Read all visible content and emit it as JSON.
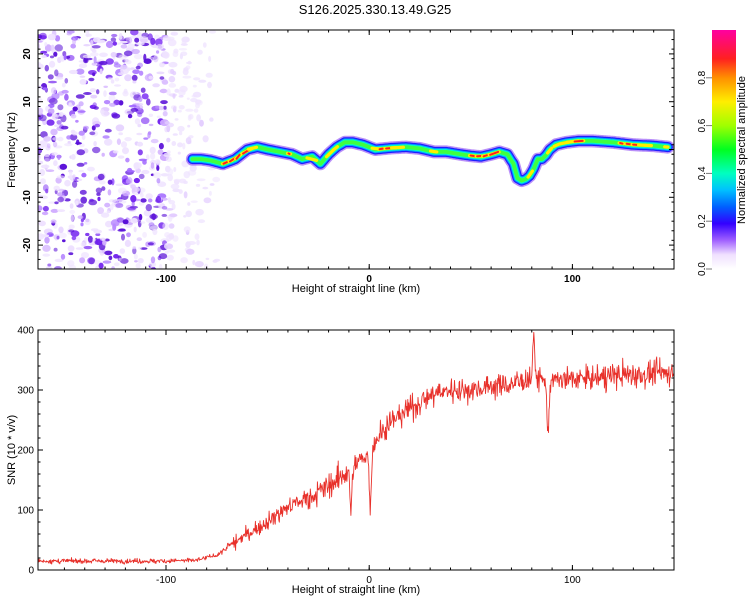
{
  "title": "S126.2025.330.13.49.G25",
  "chart_data": [
    {
      "type": "heatmap",
      "xlabel": "Height of straight line (km)",
      "ylabel": "Frequency (Hz)",
      "xlim": [
        -163,
        150
      ],
      "ylim": [
        -25,
        25
      ],
      "xticks": [
        -100,
        0,
        100
      ],
      "yticks": [
        -20,
        -10,
        0,
        10,
        20
      ],
      "noise_region_x": [
        -163,
        -70
      ],
      "ridge": {
        "x": [
          -87,
          -83,
          -78,
          -72,
          -66,
          -60,
          -55,
          -50,
          -44,
          -38,
          -33,
          -28,
          -24,
          -20,
          -16,
          -12,
          -8,
          -3,
          3,
          10,
          18,
          25,
          32,
          38,
          45,
          50,
          55,
          60,
          64,
          68,
          71,
          73,
          75,
          77,
          79,
          81,
          83,
          85,
          87,
          89,
          92,
          97,
          103,
          110,
          120,
          130,
          140,
          147
        ],
        "freq": [
          -2,
          -2,
          -2.3,
          -3,
          -2,
          0,
          0.5,
          0,
          -0.5,
          -1,
          -2,
          -1.5,
          -3,
          -1,
          0.5,
          1.5,
          1.5,
          1,
          0,
          0.3,
          0.5,
          0.2,
          -0.5,
          -0.5,
          -1,
          -1.3,
          -1.5,
          -1,
          -0.5,
          -1,
          -3,
          -6,
          -6.5,
          -6.2,
          -5.5,
          -4,
          -2,
          -2,
          -1.2,
          0,
          1,
          1.5,
          1.8,
          1.8,
          1.5,
          1.0,
          0.8,
          0.5
        ]
      },
      "colorbar": {
        "label": "Normalized spectral amplitude",
        "range": [
          0,
          1
        ],
        "ticks": [
          0.0,
          0.2,
          0.4,
          0.6,
          0.8
        ],
        "tick_labels": [
          "0.0",
          "0.2",
          "0.4",
          "0.6",
          "0.8"
        ],
        "colors": [
          "#ffffff",
          "#7b00ff",
          "#0000ff",
          "#00ffff",
          "#00ff00",
          "#ffff00",
          "#ff7f00",
          "#ff0000",
          "#ff00ff"
        ]
      }
    },
    {
      "type": "line",
      "xlabel": "Height of straight line (km)",
      "ylabel": "SNR (10 * v/v)",
      "xlim": [
        -163,
        150
      ],
      "ylim": [
        0,
        400
      ],
      "xticks": [
        -100,
        0,
        100
      ],
      "yticks": [
        0,
        100,
        200,
        300,
        400
      ],
      "color": "#e8302a",
      "trend": {
        "x": [
          -163,
          -100,
          -85,
          -75,
          -60,
          -50,
          -40,
          -30,
          -20,
          -10,
          -5,
          0,
          5,
          10,
          20,
          30,
          40,
          50,
          60,
          70,
          80,
          90,
          100,
          110,
          120,
          130,
          140,
          150
        ],
        "y": [
          15,
          15,
          16,
          25,
          60,
          80,
          105,
          120,
          140,
          165,
          180,
          200,
          225,
          245,
          270,
          290,
          300,
          300,
          305,
          310,
          320,
          315,
          318,
          320,
          325,
          325,
          328,
          330
        ]
      },
      "features": [
        {
          "x": 0.5,
          "y": 85
        },
        {
          "x": -9,
          "y": 90
        },
        {
          "x": -3,
          "y": 185
        },
        {
          "x": 81,
          "y": 398
        },
        {
          "x": 88,
          "y": 210
        }
      ]
    }
  ]
}
